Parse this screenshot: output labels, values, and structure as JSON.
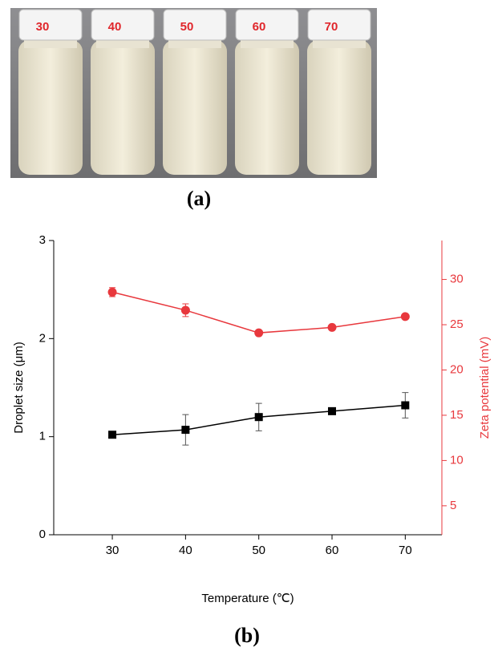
{
  "photo": {
    "labels": [
      "30",
      "40",
      "50",
      "60",
      "70"
    ],
    "caption": "(a)"
  },
  "chart_data": {
    "type": "line",
    "caption": "(b)",
    "x_label": "Temperature (℃)",
    "y_label": "Droplet size (μm)",
    "y2_label": "Zeta potential (mV)",
    "x": [
      30,
      40,
      50,
      60,
      70
    ],
    "xlim": [
      22,
      75
    ],
    "xticks": [
      30,
      40,
      50,
      60,
      70
    ],
    "ylim": [
      0,
      3
    ],
    "yticks": [
      0,
      1,
      2,
      3
    ],
    "y2lim": [
      1.8,
      34.3
    ],
    "y2ticks": [
      5,
      10,
      15,
      20,
      25,
      30
    ],
    "y2color": "#e8383d",
    "series": [
      {
        "color": "#000000",
        "marker": "square",
        "values": [
          1.02,
          1.07,
          1.2,
          1.26,
          1.32
        ],
        "errors": [
          0.02,
          0.155,
          0.14,
          0.02,
          0.13
        ]
      },
      {
        "color": "#e8383d",
        "marker": "circle",
        "axis": "y2",
        "values": [
          28.6,
          26.6,
          24.1,
          24.7,
          25.9
        ],
        "errors": [
          0.5,
          0.7,
          0.2,
          0.2,
          0.2
        ]
      }
    ]
  }
}
